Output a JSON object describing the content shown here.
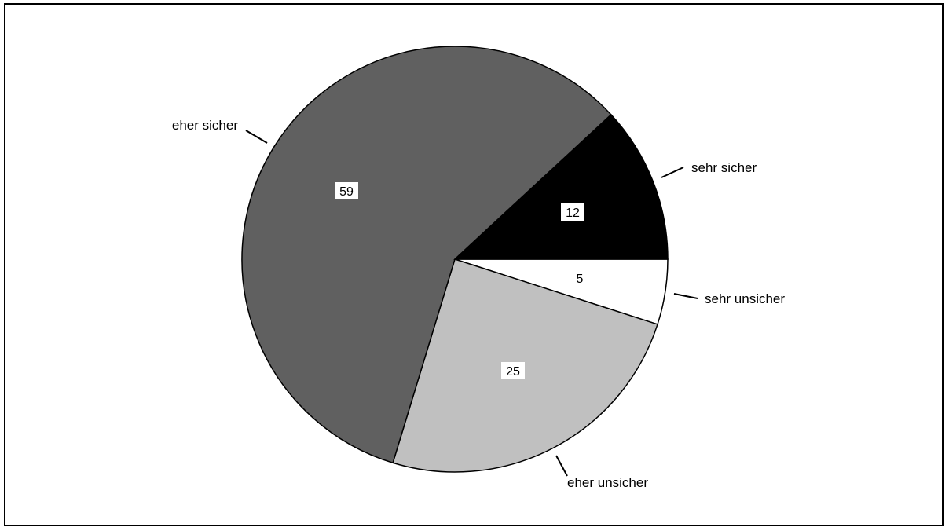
{
  "chart_data": {
    "type": "pie",
    "categories": [
      "sehr sicher",
      "sehr unsicher",
      "eher unsicher",
      "eher sicher"
    ],
    "values": [
      12,
      5,
      25,
      59
    ],
    "colors": [
      "#000000",
      "#ffffff",
      "#c0c0c0",
      "#606060"
    ],
    "value_labels": [
      "12",
      "5",
      "25",
      "59"
    ],
    "start_angle_deg": 0,
    "direction": "clockwise-from-3-oclock",
    "title": ""
  }
}
